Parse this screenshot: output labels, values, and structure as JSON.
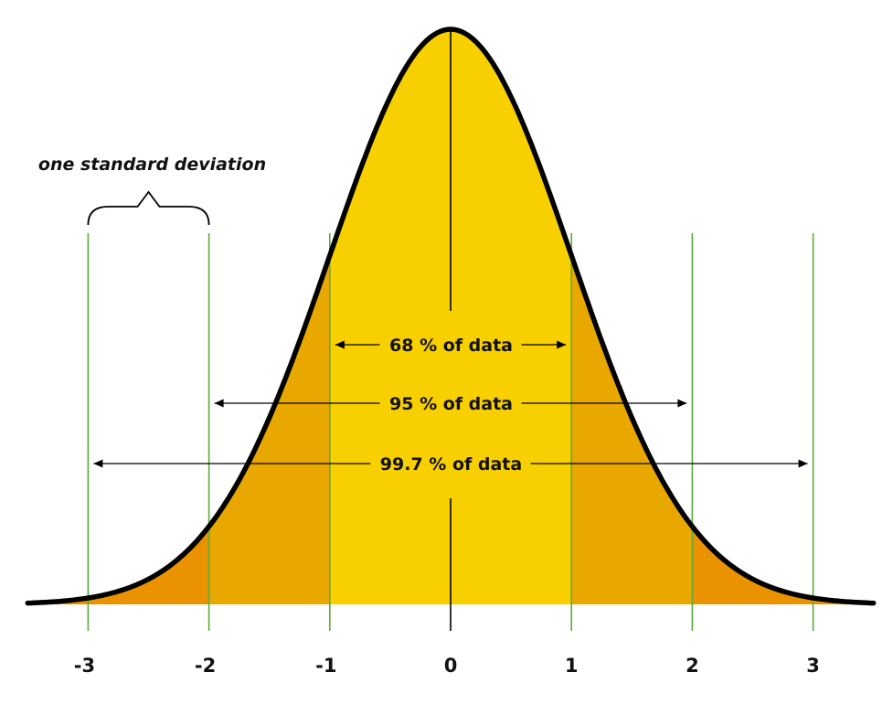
{
  "chart_data": {
    "type": "area",
    "distribution": "normal",
    "mean": 0,
    "std_dev": 1,
    "xlim": [
      -3.5,
      3.5
    ],
    "x_ticks": [
      -3,
      -2,
      -1,
      0,
      1,
      2,
      3
    ],
    "x_tick_labels": [
      "-3",
      "-2",
      "-1",
      "0",
      "1",
      "2",
      "3"
    ],
    "sigma_lines": [
      -3,
      -2,
      -1,
      1,
      2,
      3
    ],
    "regions": [
      {
        "from": -1,
        "to": 1,
        "color": "#F8D000"
      },
      {
        "from": -2,
        "to": -1,
        "color": "#E8A800"
      },
      {
        "from": 1,
        "to": 2,
        "color": "#E8A800"
      },
      {
        "from": -3.5,
        "to": -2,
        "color": "#EB9200"
      },
      {
        "from": 2,
        "to": 3.5,
        "color": "#EB9200"
      }
    ],
    "bands": [
      {
        "from": -1,
        "to": 1,
        "label": "68 % of data"
      },
      {
        "from": -2,
        "to": 2,
        "label": "95 % of data"
      },
      {
        "from": -3,
        "to": 3,
        "label": "99.7 % of data"
      }
    ],
    "annotation": {
      "label": "one standard deviation",
      "from": -3,
      "to": -2
    },
    "colors": {
      "curve": "#000000",
      "sigma_line": "#5BAA3A",
      "mean_line": "#000000",
      "arrow": "#000000"
    }
  }
}
